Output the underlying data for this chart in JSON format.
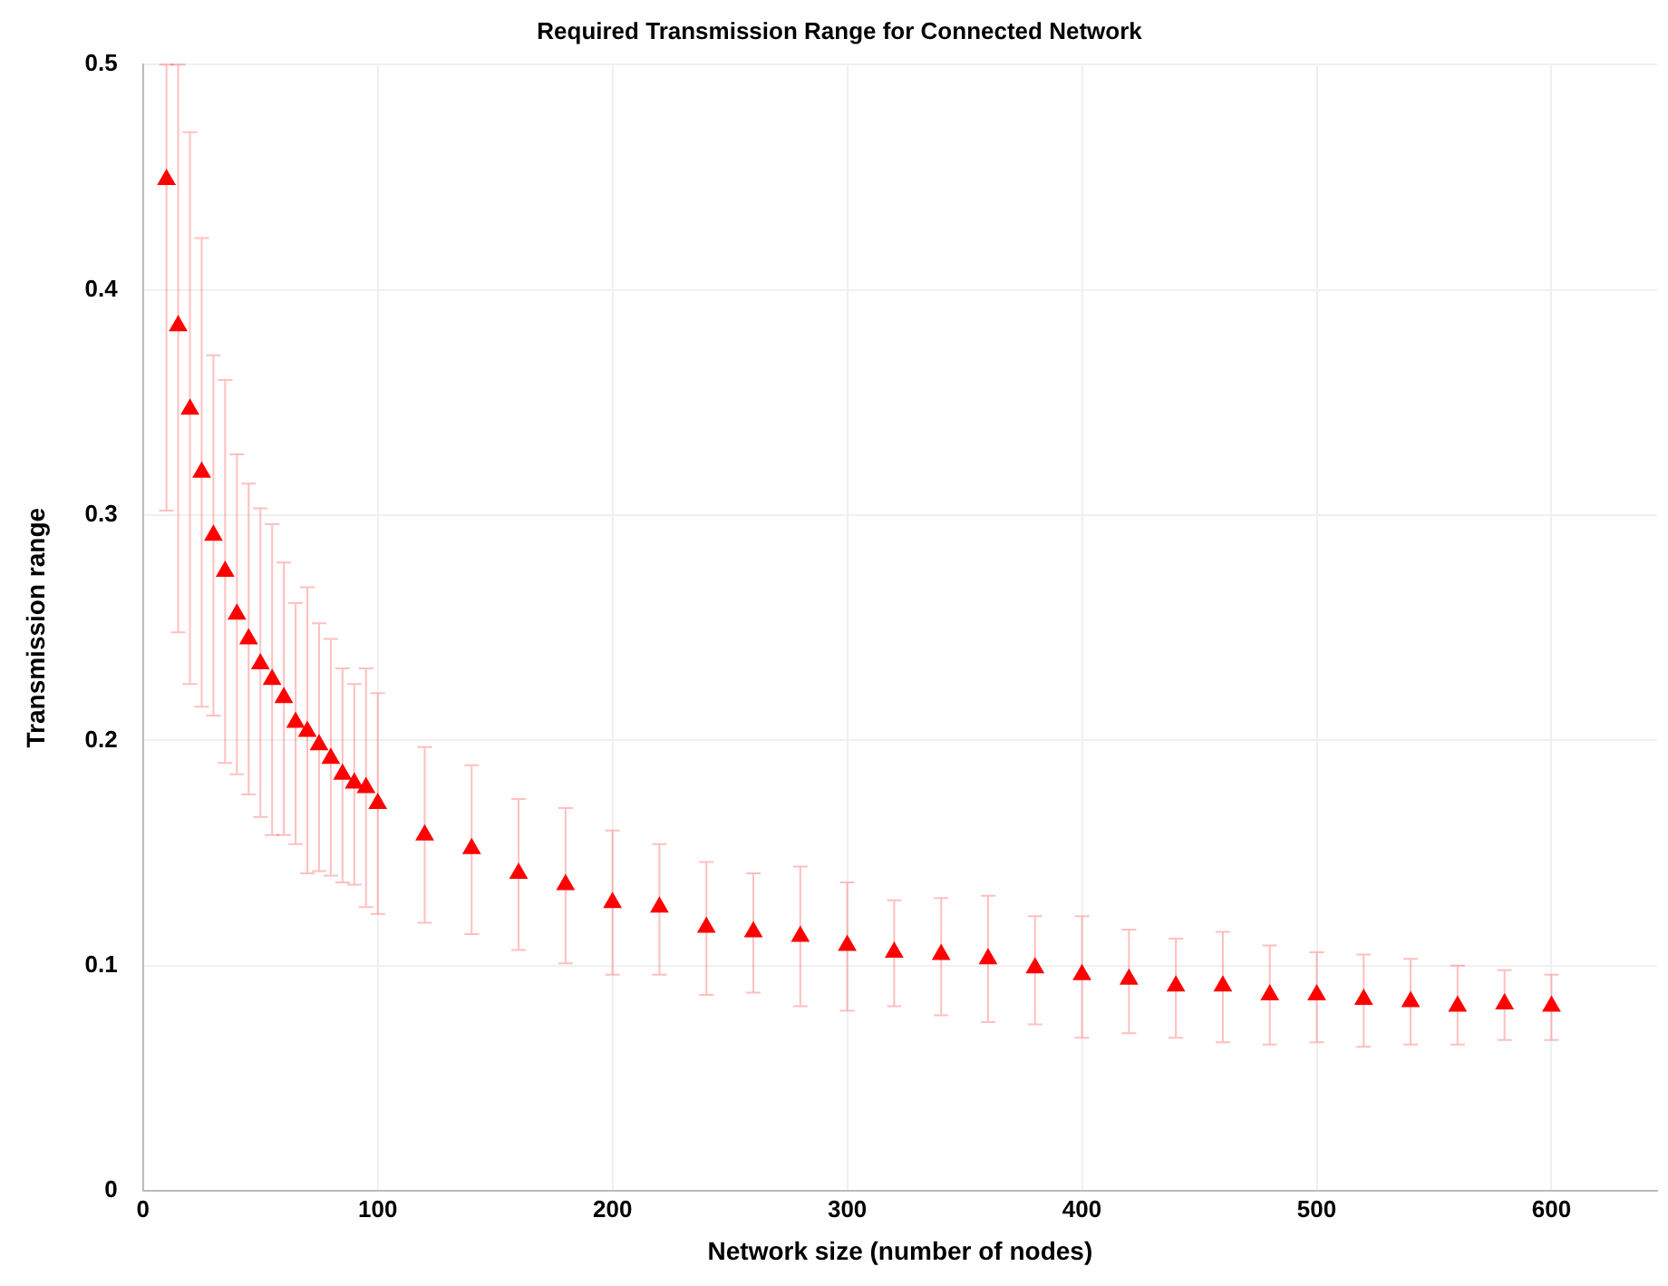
{
  "chart_data": {
    "type": "scatter",
    "title": "Required Transmission Range for Connected Network",
    "xlabel": "Network size (number of nodes)",
    "ylabel": "Transmission range",
    "x": [
      10,
      15,
      20,
      25,
      30,
      35,
      40,
      45,
      50,
      55,
      60,
      65,
      70,
      75,
      80,
      85,
      90,
      95,
      100,
      120,
      140,
      160,
      180,
      200,
      220,
      240,
      260,
      280,
      300,
      320,
      340,
      360,
      380,
      400,
      420,
      440,
      460,
      480,
      500,
      520,
      540,
      560,
      580,
      600
    ],
    "series": [
      {
        "color": "#ff0000",
        "values": [
          0.449,
          0.384,
          0.347,
          0.319,
          0.291,
          0.275,
          0.256,
          0.245,
          0.234,
          0.227,
          0.219,
          0.208,
          0.204,
          0.198,
          0.192,
          0.185,
          0.181,
          0.179,
          0.172,
          0.158,
          0.152,
          0.141,
          0.136,
          0.128,
          0.126,
          0.117,
          0.115,
          0.113,
          0.109,
          0.106,
          0.105,
          0.103,
          0.099,
          0.096,
          0.094,
          0.091,
          0.091,
          0.087,
          0.087,
          0.085,
          0.084,
          0.082,
          0.083,
          0.082
        ],
        "errors": [
          [
            0.302,
            0.5
          ],
          [
            0.248,
            0.5
          ],
          [
            0.225,
            0.47
          ],
          [
            0.215,
            0.423
          ],
          [
            0.211,
            0.371
          ],
          [
            0.19,
            0.36
          ],
          [
            0.185,
            0.327
          ],
          [
            0.176,
            0.314
          ],
          [
            0.166,
            0.303
          ],
          [
            0.158,
            0.296
          ],
          [
            0.158,
            0.279
          ],
          [
            0.154,
            0.261
          ],
          [
            0.141,
            0.268
          ],
          [
            0.142,
            0.252
          ],
          [
            0.14,
            0.245
          ],
          [
            0.137,
            0.232
          ],
          [
            0.136,
            0.225
          ],
          [
            0.126,
            0.232
          ],
          [
            0.123,
            0.221
          ],
          [
            0.119,
            0.197
          ],
          [
            0.114,
            0.189
          ],
          [
            0.107,
            0.174
          ],
          [
            0.101,
            0.17
          ],
          [
            0.096,
            0.16
          ],
          [
            0.096,
            0.154
          ],
          [
            0.087,
            0.146
          ],
          [
            0.088,
            0.141
          ],
          [
            0.082,
            0.144
          ],
          [
            0.08,
            0.137
          ],
          [
            0.082,
            0.129
          ],
          [
            0.078,
            0.13
          ],
          [
            0.075,
            0.131
          ],
          [
            0.074,
            0.122
          ],
          [
            0.068,
            0.122
          ],
          [
            0.07,
            0.116
          ],
          [
            0.068,
            0.112
          ],
          [
            0.066,
            0.115
          ],
          [
            0.065,
            0.109
          ],
          [
            0.066,
            0.106
          ],
          [
            0.064,
            0.105
          ],
          [
            0.065,
            0.103
          ],
          [
            0.065,
            0.1
          ],
          [
            0.067,
            0.098
          ],
          [
            0.067,
            0.096
          ]
        ]
      }
    ],
    "xlim": [
      0,
      645
    ],
    "xticks": [
      0,
      100,
      200,
      300,
      400,
      500,
      600
    ],
    "ylim": [
      0,
      0.5
    ],
    "yticks": [
      0,
      0.1,
      0.2,
      0.3,
      0.4,
      0.5
    ],
    "grid": true,
    "marker": "triangle",
    "legend": false
  }
}
